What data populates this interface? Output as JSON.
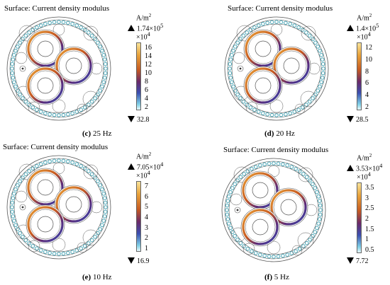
{
  "panels": [
    {
      "title": "Surface: Current density modulus",
      "unit": "A/m",
      "unit_sup": "2",
      "max_value": "1.74×10",
      "max_sup": "5",
      "scale": "×10",
      "scale_sup": "4",
      "ticks": [
        "16",
        "14",
        "12",
        "10",
        "8",
        "6",
        "4",
        "2"
      ],
      "min_value": "32.8",
      "caption_letter": "(c)",
      "caption_text": "25 Hz"
    },
    {
      "title": "Surface: Current density modulus",
      "unit": "A/m",
      "unit_sup": "2",
      "max_value": "1.4×10",
      "max_sup": "5",
      "scale": "×10",
      "scale_sup": "4",
      "ticks": [
        "12",
        "10",
        "8",
        "6",
        "4",
        "2"
      ],
      "min_value": "28.5",
      "caption_letter": "(d)",
      "caption_text": "20 Hz"
    },
    {
      "title": "Surface: Current density modulus",
      "unit": "A/m",
      "unit_sup": "2",
      "max_value": "7.05×10",
      "max_sup": "4",
      "scale": "×10",
      "scale_sup": "4",
      "ticks": [
        "7",
        "6",
        "5",
        "4",
        "3",
        "2",
        "1"
      ],
      "min_value": "16.9",
      "caption_letter": "(e)",
      "caption_text": "10 Hz"
    },
    {
      "title": "Surface: Current density modulus",
      "unit": "A/m",
      "unit_sup": "2",
      "max_value": "3.53×10",
      "max_sup": "4",
      "scale": "×10",
      "scale_sup": "4",
      "ticks": [
        "3.5",
        "3",
        "2.5",
        "2",
        "1.5",
        "1",
        "0.5"
      ],
      "min_value": "7.72",
      "caption_letter": "(f)",
      "caption_text": "5 Hz"
    }
  ],
  "colors": {
    "strand": "#4aa7b8",
    "hot": "#e8a23a",
    "warm": "#c65a22",
    "cold": "#3b4fb0",
    "line": "#555555"
  }
}
